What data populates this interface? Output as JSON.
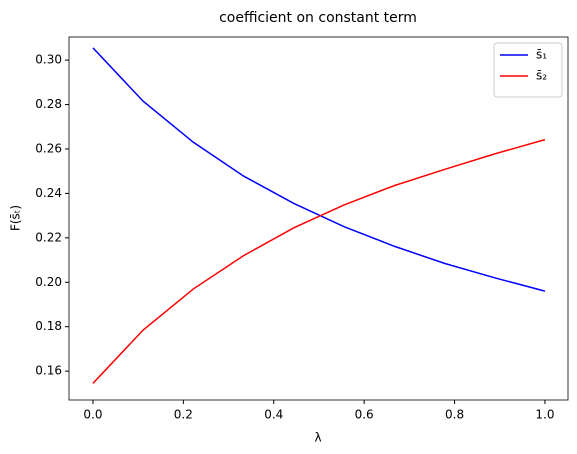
{
  "chart_data": {
    "type": "line",
    "title": "coefficient on constant term",
    "x_label": "λ",
    "y_label": "F(s̄ₜ)",
    "x": [
      0,
      0.1111,
      0.2222,
      0.3333,
      0.4444,
      0.5556,
      0.6667,
      0.7778,
      0.8889,
      1
    ],
    "series": [
      {
        "name": "s̄₁",
        "color": "#0000ff",
        "values": [
          0.3055,
          0.2815,
          0.263,
          0.2478,
          0.2355,
          0.225,
          0.2162,
          0.2085,
          0.202,
          0.196
        ]
      },
      {
        "name": "s̄₂",
        "color": "#ff0000",
        "values": [
          0.1545,
          0.1785,
          0.197,
          0.212,
          0.2245,
          0.2348,
          0.2435,
          0.2508,
          0.2578,
          0.2642
        ]
      }
    ],
    "xlim": [
      -0.053,
      1.051
    ],
    "ylim": [
      0.147,
      0.3104
    ],
    "xticks": [
      {
        "value": 0,
        "label": "0.0"
      },
      0.2,
      0.4,
      0.6,
      0.8,
      {
        "value": 1,
        "label": "1.0"
      }
    ],
    "yticks": [
      0.16,
      0.18,
      {
        "value": 0.2,
        "label": "0.20"
      },
      0.22,
      0.24,
      0.26,
      0.28,
      {
        "value": 0.3,
        "label": "0.30"
      }
    ],
    "legend": "upper right",
    "grid": false
  }
}
